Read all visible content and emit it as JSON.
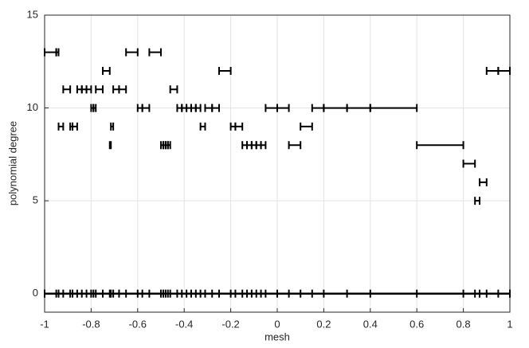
{
  "chart_data": {
    "type": "interval",
    "xlabel": "mesh",
    "ylabel": "polynomial degree",
    "nodes": [
      -1,
      -0.95,
      -0.94,
      -0.92,
      -0.89,
      -0.88,
      -0.86,
      -0.84,
      -0.82,
      -0.8,
      -0.79,
      -0.78,
      -0.75,
      -0.72,
      -0.715,
      -0.705,
      -0.68,
      -0.65,
      -0.6,
      -0.58,
      -0.55,
      -0.5,
      -0.49,
      -0.48,
      -0.47,
      -0.46,
      -0.43,
      -0.41,
      -0.39,
      -0.37,
      -0.35,
      -0.33,
      -0.31,
      -0.28,
      -0.25,
      -0.2,
      -0.18,
      -0.15,
      -0.13,
      -0.11,
      -0.09,
      -0.07,
      -0.05,
      0,
      0.05,
      0.1,
      0.15,
      0.2,
      0.3,
      0.4,
      0.6,
      0.8,
      0.85,
      0.87,
      0.9,
      0.95,
      1
    ],
    "values": [
      13,
      13,
      9,
      11,
      9,
      9,
      11,
      11,
      11,
      10,
      10,
      11,
      12,
      8,
      9,
      11,
      11,
      13,
      10,
      10,
      13,
      8,
      8,
      8,
      8,
      11,
      10,
      10,
      10,
      10,
      10,
      9,
      10,
      10,
      12,
      9,
      9,
      8,
      8,
      8,
      8,
      8,
      10,
      10,
      8,
      9,
      10,
      10,
      10,
      10,
      8,
      7,
      5,
      6,
      12,
      12
    ],
    "color": "#000000",
    "xlim": [
      -1,
      1
    ],
    "xticks": [
      -1,
      -0.8,
      -0.6,
      -0.4,
      -0.2,
      0,
      0.2,
      0.4,
      0.6,
      0.8,
      1
    ],
    "ylim": [
      -1,
      15
    ],
    "yticks": [
      0,
      5,
      10,
      15
    ],
    "grid": true
  }
}
